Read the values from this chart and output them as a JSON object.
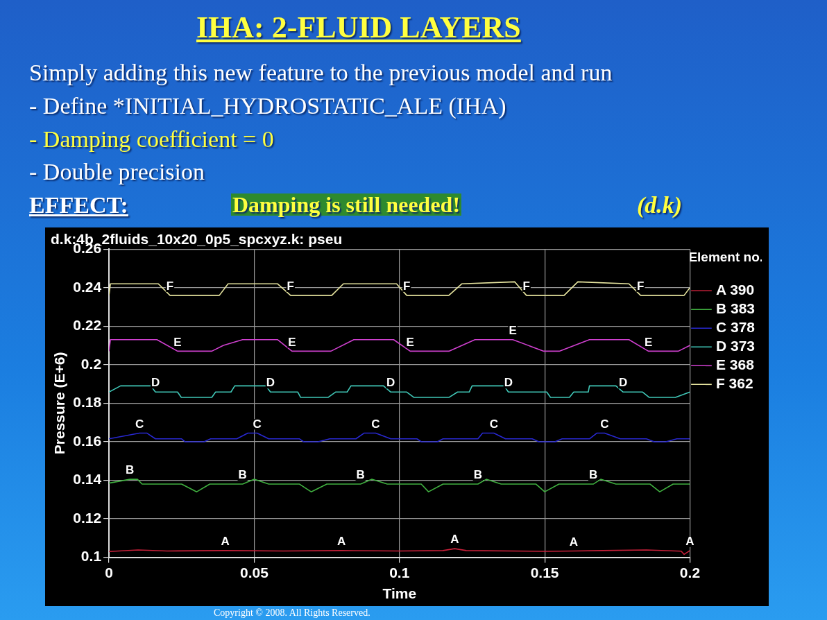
{
  "chart_data": {
    "type": "line",
    "title": "d.k:4b_2fluids_10x20_0p5_spcxyz.k: pseu",
    "xlabel": "Time",
    "ylabel": "Pressure (E+6)",
    "legend_title": "Element no.",
    "legend": "right",
    "grid": true,
    "marker": "none",
    "line_style": "solid",
    "xlim": [
      0,
      0.2
    ],
    "ylim": [
      0.1,
      0.26
    ],
    "xticks": [
      0,
      0.05,
      0.1,
      0.15,
      0.2
    ],
    "yticks": [
      0.1,
      0.12,
      0.14,
      0.16,
      0.18,
      0.2,
      0.22,
      0.24,
      0.26
    ],
    "series": [
      {
        "name": "A 390",
        "color": "#c8203a",
        "x": [
          0,
          0.01,
          0.02,
          0.04,
          0.06,
          0.08,
          0.1,
          0.115,
          0.119,
          0.123,
          0.15,
          0.16,
          0.17,
          0.185,
          0.197,
          0.198,
          0.2
        ],
        "values": [
          0.103,
          0.1038,
          0.1033,
          0.1035,
          0.1033,
          0.1035,
          0.1033,
          0.1035,
          0.1045,
          0.1035,
          0.1031,
          0.1033,
          0.1035,
          0.1038,
          0.1032,
          0.1015,
          0.1035
        ]
      },
      {
        "name": "B 383",
        "color": "#40b040",
        "x": [
          0,
          0.0072,
          0.0098,
          0.0114,
          0.025,
          0.0302,
          0.0347,
          0.046,
          0.05,
          0.055,
          0.0656,
          0.0696,
          0.075,
          0.0866,
          0.0905,
          0.0958,
          0.1075,
          0.11,
          0.115,
          0.127,
          0.1299,
          0.135,
          0.147,
          0.15,
          0.1549,
          0.1667,
          0.1693,
          0.1745,
          0.1863,
          0.1896,
          0.1942,
          0.2
        ],
        "values": [
          0.1385,
          0.1405,
          0.1405,
          0.138,
          0.138,
          0.134,
          0.138,
          0.138,
          0.1405,
          0.138,
          0.138,
          0.134,
          0.138,
          0.138,
          0.1405,
          0.138,
          0.138,
          0.134,
          0.138,
          0.138,
          0.1405,
          0.138,
          0.138,
          0.134,
          0.138,
          0.138,
          0.1405,
          0.138,
          0.138,
          0.134,
          0.138,
          0.138
        ]
      },
      {
        "name": "C 378",
        "color": "#2828d0",
        "x": [
          0,
          0.0105,
          0.013,
          0.016,
          0.025,
          0.0262,
          0.0327,
          0.035,
          0.044,
          0.0478,
          0.051,
          0.055,
          0.0656,
          0.067,
          0.072,
          0.076,
          0.085,
          0.0879,
          0.0918,
          0.097,
          0.106,
          0.1075,
          0.113,
          0.115,
          0.127,
          0.1286,
          0.1325,
          0.1365,
          0.1457,
          0.148,
          0.1535,
          0.156,
          0.1654,
          0.168,
          0.1706,
          0.176,
          0.185,
          0.1877,
          0.1917,
          0.1955,
          0.2
        ],
        "values": [
          0.1615,
          0.1645,
          0.1645,
          0.1615,
          0.1615,
          0.16,
          0.16,
          0.1615,
          0.1615,
          0.1645,
          0.1645,
          0.1615,
          0.1615,
          0.16,
          0.16,
          0.1615,
          0.1615,
          0.1645,
          0.1645,
          0.1615,
          0.1615,
          0.16,
          0.16,
          0.1615,
          0.1615,
          0.1645,
          0.1645,
          0.1615,
          0.1615,
          0.16,
          0.16,
          0.1615,
          0.1615,
          0.1645,
          0.1645,
          0.1615,
          0.1615,
          0.16,
          0.16,
          0.1615,
          0.1615
        ]
      },
      {
        "name": "D 373",
        "color": "#40c8b8",
        "x": [
          0,
          0.004,
          0.0144,
          0.016,
          0.0236,
          0.0249,
          0.0354,
          0.0367,
          0.042,
          0.0433,
          0.054,
          0.0556,
          0.065,
          0.066,
          0.0754,
          0.078,
          0.082,
          0.0833,
          0.0945,
          0.097,
          0.1025,
          0.105,
          0.117,
          0.12,
          0.124,
          0.125,
          0.136,
          0.1375,
          0.1507,
          0.152,
          0.1585,
          0.16,
          0.165,
          0.1654,
          0.1745,
          0.177,
          0.1837,
          0.186,
          0.195,
          0.2
        ],
        "values": [
          0.1858,
          0.189,
          0.189,
          0.1858,
          0.1858,
          0.183,
          0.183,
          0.1858,
          0.1858,
          0.189,
          0.189,
          0.1858,
          0.1858,
          0.183,
          0.183,
          0.1858,
          0.1858,
          0.189,
          0.189,
          0.1858,
          0.1858,
          0.183,
          0.183,
          0.1858,
          0.1858,
          0.189,
          0.189,
          0.1858,
          0.1858,
          0.183,
          0.183,
          0.1858,
          0.1858,
          0.189,
          0.189,
          0.1858,
          0.1858,
          0.183,
          0.183,
          0.1858
        ]
      },
      {
        "name": "E 368",
        "color": "#d040d0",
        "x": [
          0,
          0.0005,
          0.0165,
          0.0236,
          0.0354,
          0.0394,
          0.046,
          0.058,
          0.063,
          0.0764,
          0.0843,
          0.098,
          0.1037,
          0.117,
          0.126,
          0.139,
          0.1497,
          0.155,
          0.1654,
          0.179,
          0.1857,
          0.196,
          0.2
        ],
        "values": [
          0.207,
          0.213,
          0.213,
          0.207,
          0.207,
          0.21,
          0.213,
          0.213,
          0.207,
          0.207,
          0.213,
          0.213,
          0.207,
          0.207,
          0.213,
          0.213,
          0.207,
          0.207,
          0.213,
          0.213,
          0.207,
          0.207,
          0.21
        ]
      },
      {
        "name": "F 362",
        "color": "#e8e6a0",
        "x": [
          0,
          0.0005,
          0.017,
          0.021,
          0.038,
          0.041,
          0.058,
          0.0625,
          0.0767,
          0.0807,
          0.099,
          0.1025,
          0.117,
          0.1215,
          0.1397,
          0.1437,
          0.1567,
          0.1614,
          0.179,
          0.183,
          0.198,
          0.2
        ],
        "values": [
          0.236,
          0.242,
          0.242,
          0.236,
          0.236,
          0.242,
          0.242,
          0.236,
          0.236,
          0.242,
          0.242,
          0.236,
          0.236,
          0.242,
          0.243,
          0.236,
          0.236,
          0.243,
          0.242,
          0.236,
          0.236,
          0.24
        ]
      }
    ],
    "annotations": [
      "IHA: 2-FLUID LAYERS",
      "Simply adding this new feature to the previous model and run",
      "- Define *INITIAL_HYDROSTATIC_ALE (IHA)",
      "- Damping coefficient = 0",
      "- Double precision",
      "EFFECT:",
      "Damping is still needed!",
      "(d.k)",
      "Copyright © 2008. All Rights Reserved.",
      {
        "text": "A",
        "x": 0.04,
        "y": 0.1035
      },
      {
        "text": "A",
        "x": 0.08,
        "y": 0.1035
      },
      {
        "text": "A",
        "x": 0.119,
        "y": 0.1045
      },
      {
        "text": "A",
        "x": 0.16,
        "y": 0.1033
      },
      {
        "text": "A",
        "x": 0.2,
        "y": 0.1035
      },
      {
        "text": "B",
        "x": 0.0072,
        "y": 0.1405
      },
      {
        "text": "B",
        "x": 0.046,
        "y": 0.138
      },
      {
        "text": "B",
        "x": 0.0866,
        "y": 0.138
      },
      {
        "text": "B",
        "x": 0.127,
        "y": 0.138
      },
      {
        "text": "B",
        "x": 0.1667,
        "y": 0.138
      },
      {
        "text": "C",
        "x": 0.0105,
        "y": 0.1645
      },
      {
        "text": "C",
        "x": 0.051,
        "y": 0.1645
      },
      {
        "text": "C",
        "x": 0.0918,
        "y": 0.1645
      },
      {
        "text": "C",
        "x": 0.1325,
        "y": 0.1645
      },
      {
        "text": "C",
        "x": 0.1706,
        "y": 0.1645
      },
      {
        "text": "D",
        "x": 0.016,
        "y": 0.1858
      },
      {
        "text": "D",
        "x": 0.0556,
        "y": 0.1858
      },
      {
        "text": "D",
        "x": 0.097,
        "y": 0.1858
      },
      {
        "text": "D",
        "x": 0.1375,
        "y": 0.1858
      },
      {
        "text": "D",
        "x": 0.177,
        "y": 0.1858
      },
      {
        "text": "E",
        "x": 0.0236,
        "y": 0.207
      },
      {
        "text": "E",
        "x": 0.063,
        "y": 0.207
      },
      {
        "text": "E",
        "x": 0.1037,
        "y": 0.207
      },
      {
        "text": "E",
        "x": 0.139,
        "y": 0.213
      },
      {
        "text": "E",
        "x": 0.1857,
        "y": 0.207
      },
      {
        "text": "F",
        "x": 0.021,
        "y": 0.236
      },
      {
        "text": "F",
        "x": 0.0625,
        "y": 0.236
      },
      {
        "text": "F",
        "x": 0.1025,
        "y": 0.236
      },
      {
        "text": "F",
        "x": 0.1437,
        "y": 0.236
      },
      {
        "text": "F",
        "x": 0.183,
        "y": 0.236
      }
    ]
  }
}
